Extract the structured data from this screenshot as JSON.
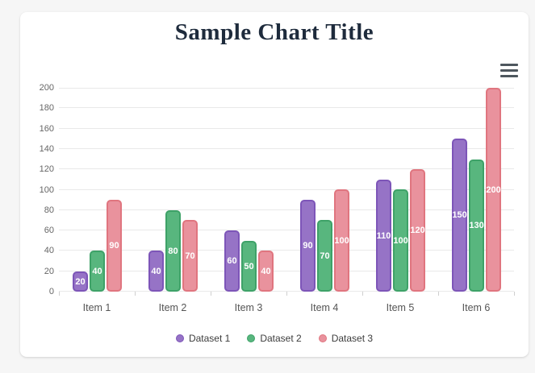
{
  "icons": {
    "menu": "hamburger-menu"
  },
  "chart_data": {
    "type": "bar",
    "title": "Sample Chart Title",
    "categories": [
      "Item 1",
      "Item 2",
      "Item 3",
      "Item 4",
      "Item 5",
      "Item 6"
    ],
    "series": [
      {
        "name": "Dataset 1",
        "color": "#9673c6",
        "border_color": "#7d55b8",
        "values": [
          20,
          40,
          60,
          90,
          110,
          150
        ]
      },
      {
        "name": "Dataset 2",
        "color": "#58b67e",
        "border_color": "#3ea268",
        "values": [
          40,
          80,
          50,
          70,
          100,
          130
        ]
      },
      {
        "name": "Dataset 3",
        "color": "#e9929d",
        "border_color": "#e0757f",
        "values": [
          90,
          70,
          40,
          100,
          120,
          200
        ]
      }
    ],
    "ylim": [
      0,
      200
    ],
    "ytick_step": 20,
    "grid": true,
    "bar_value_labels": true,
    "legend_position": "bottom",
    "colors": {
      "background": "#f6f6f6",
      "card": "#ffffff",
      "title_text": "#1e2b3c",
      "axis_text": "#666666",
      "gridline": "#e9e9e9",
      "bar_label_text": "#ffffff"
    }
  }
}
